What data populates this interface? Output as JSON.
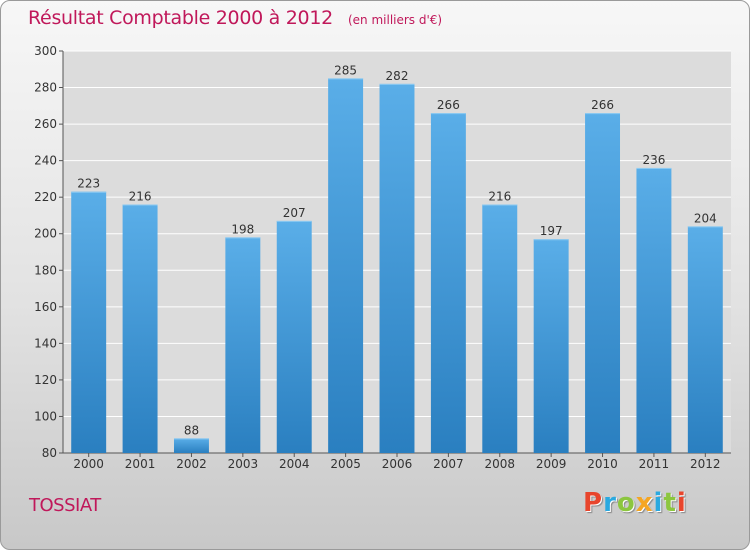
{
  "header": {
    "title": "Résultat Comptable 2000 à 2012",
    "subtitle": "(en milliers d'€)"
  },
  "footer": {
    "commune": "TOSSIAT",
    "brand": "Proxiti",
    "brand_colors": [
      "#e8452c",
      "#2aa9e0",
      "#8cc63f",
      "#f5a623",
      "#2aa9e0",
      "#8cc63f",
      "#e8452c"
    ]
  },
  "colors": {
    "bar_top": "#5aaee8",
    "bar_bottom": "#2a7fc0",
    "title": "#c0185a",
    "grid": "#ffffff"
  },
  "chart_data": {
    "type": "bar",
    "categories": [
      "2000",
      "2001",
      "2002",
      "2003",
      "2004",
      "2005",
      "2006",
      "2007",
      "2008",
      "2009",
      "2010",
      "2011",
      "2012"
    ],
    "values": [
      223,
      216,
      88,
      198,
      207,
      285,
      282,
      266,
      216,
      197,
      266,
      236,
      204
    ],
    "ylim": [
      80,
      300
    ],
    "yticks": [
      80,
      100,
      120,
      140,
      160,
      180,
      200,
      220,
      240,
      260,
      280,
      300
    ],
    "grid": true,
    "data_labels": true
  }
}
